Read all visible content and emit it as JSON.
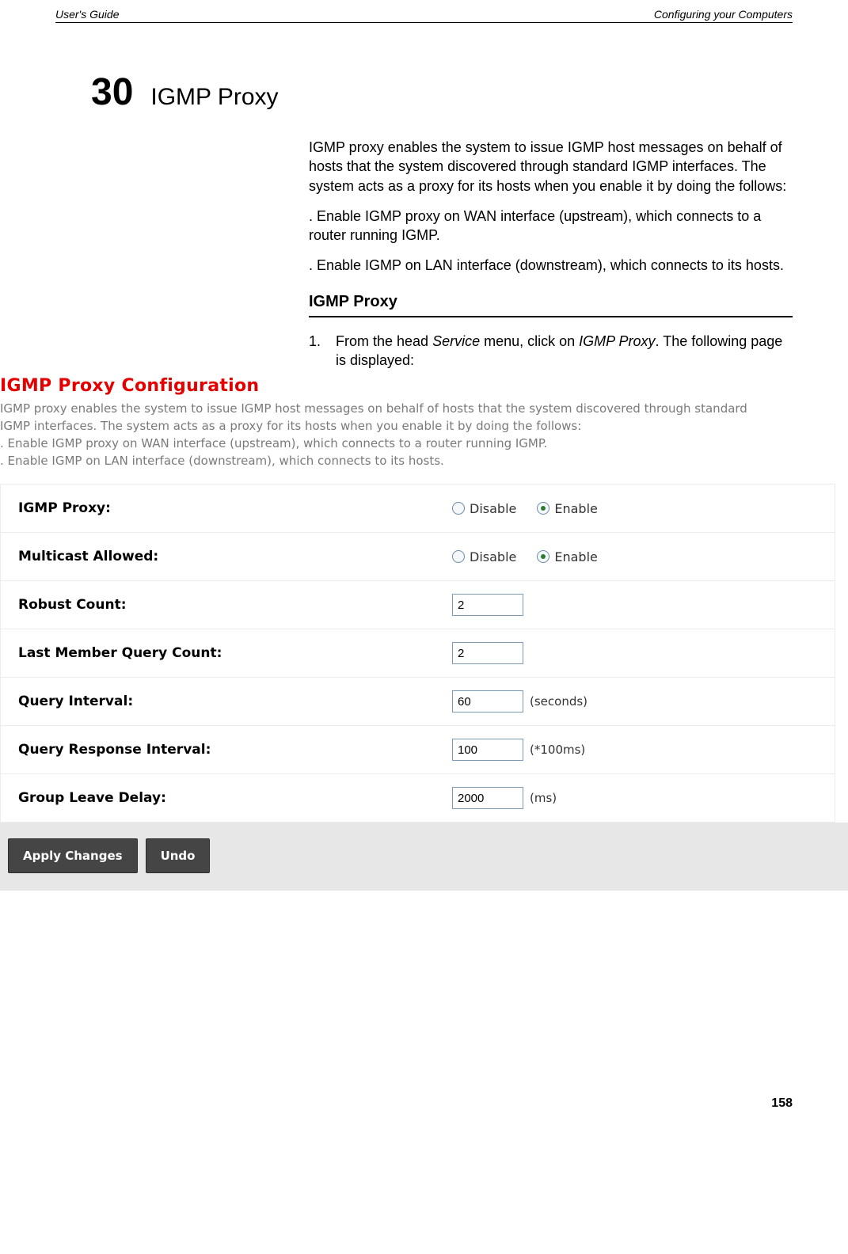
{
  "header": {
    "left": "User's Guide",
    "right": "Configuring your Computers"
  },
  "chapter": {
    "number": "30",
    "title": "IGMP Proxy"
  },
  "intro": {
    "p1": "IGMP proxy enables the system to issue IGMP host messages on behalf of hosts that the system discovered through standard IGMP interfaces. The system acts as a proxy for its hosts when you enable it by doing the follows:",
    "p2": ". Enable IGMP proxy on WAN interface (upstream), which connects to a router running IGMP.",
    "p3": ". Enable IGMP on LAN interface (downstream), which connects to its hosts."
  },
  "section_heading": "IGMP Proxy",
  "step1": {
    "num": "1.",
    "pre": "From the head ",
    "menu": "Service",
    "mid": "  menu, click on ",
    "target": "IGMP Proxy",
    "post": ". The following page is displayed:"
  },
  "config": {
    "title": "IGMP Proxy Configuration",
    "intro_lines": [
      "IGMP proxy enables the system to issue IGMP host messages on behalf of hosts that the system discovered through standard",
      "IGMP interfaces. The system acts as a proxy for its hosts when you enable it by doing the follows:",
      ". Enable IGMP proxy on WAN interface (upstream), which connects to a router running IGMP.",
      ". Enable IGMP on LAN interface (downstream), which connects to its hosts."
    ],
    "rows": {
      "igmp_proxy": {
        "label": "IGMP Proxy:",
        "options": {
          "disable": "Disable",
          "enable": "Enable"
        },
        "selected": "enable"
      },
      "multicast": {
        "label": "Multicast Allowed:",
        "options": {
          "disable": "Disable",
          "enable": "Enable"
        },
        "selected": "enable"
      },
      "robust": {
        "label": "Robust Count:",
        "value": "2",
        "unit": ""
      },
      "lmqc": {
        "label": "Last Member Query Count:",
        "value": "2",
        "unit": ""
      },
      "qint": {
        "label": "Query Interval:",
        "value": "60",
        "unit": "(seconds)"
      },
      "qresp": {
        "label": "Query Response Interval:",
        "value": "100",
        "unit": "(*100ms)"
      },
      "gleave": {
        "label": "Group Leave Delay:",
        "value": "2000",
        "unit": "(ms)"
      }
    },
    "buttons": {
      "apply": "Apply Changes",
      "undo": "Undo"
    },
    "colors": {
      "title_color": "#e50000",
      "intro_color": "#7a7a7a",
      "row_border": "#ececec",
      "button_bg": "#454545",
      "buttonbar_bg": "#e7e7e7",
      "radio_border": "#6a8aa8",
      "radio_dot": "#2d7a2d",
      "input_border": "#7a9ab5"
    }
  },
  "page_number": "158"
}
